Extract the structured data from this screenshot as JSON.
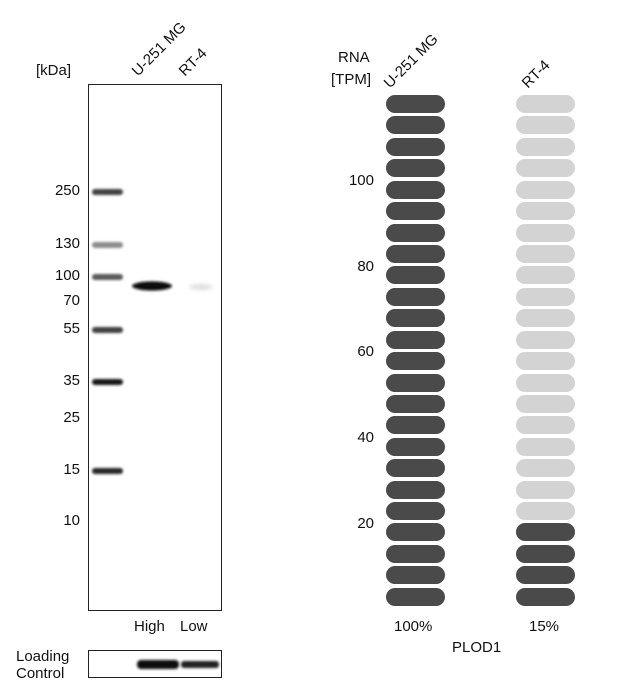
{
  "western_blot": {
    "unit_label": "[kDa]",
    "lane_headers": [
      "U-251 MG",
      "RT-4"
    ],
    "markers": [
      {
        "label": "250",
        "band": true
      },
      {
        "label": "130",
        "band": true
      },
      {
        "label": "100",
        "band": true
      },
      {
        "label": "70",
        "band": false
      },
      {
        "label": "55",
        "band": true
      },
      {
        "label": "35",
        "band": true
      },
      {
        "label": "25",
        "band": false
      },
      {
        "label": "15",
        "band": true
      },
      {
        "label": "10",
        "band": false
      }
    ],
    "lane_levels": [
      "High",
      "Low"
    ],
    "loading_control_label_line1": "Loading",
    "loading_control_label_line2": "Control"
  },
  "rna_chart": {
    "axis_title_line1": "RNA",
    "axis_title_line2": "[TPM]",
    "ticks": [
      "100",
      "80",
      "60",
      "40",
      "20"
    ],
    "gene": "PLOD1",
    "colors": {
      "filled": "#4a4a4a",
      "empty": "#d3d3d3"
    }
  },
  "chart_data": {
    "type": "bar",
    "title": "",
    "xlabel": "",
    "ylabel": "RNA [TPM]",
    "categories": [
      "U-251 MG",
      "RT-4"
    ],
    "series": [
      {
        "values": [
          100,
          15
        ]
      }
    ],
    "value_labels": [
      "100%",
      "15%"
    ],
    "segments_total": 24,
    "segments_filled": [
      24,
      4
    ],
    "y_ticks": [
      20,
      40,
      60,
      80,
      100
    ]
  }
}
